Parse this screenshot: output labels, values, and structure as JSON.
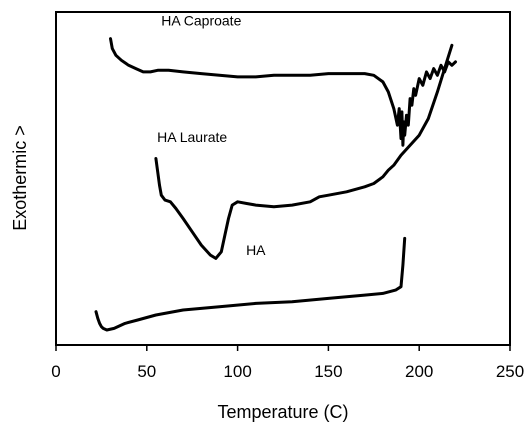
{
  "chart_data": {
    "type": "line",
    "title": "",
    "xlabel": "Temperature (C)",
    "ylabel": "Exothermic  >",
    "xlim": [
      0,
      250
    ],
    "xticks": [
      0,
      50,
      100,
      150,
      200,
      250
    ],
    "ylim": [
      0,
      100
    ],
    "yticks": [],
    "grid": false,
    "legend": "none",
    "series": [
      {
        "name": "HA Caproate",
        "x": [
          30,
          31,
          33,
          36,
          40,
          44,
          48,
          52,
          56,
          62,
          70,
          80,
          90,
          100,
          110,
          120,
          130,
          140,
          150,
          160,
          170,
          175,
          180,
          183,
          186,
          188,
          189,
          190,
          190.5,
          191,
          191.5,
          192,
          193,
          194,
          195,
          196,
          197,
          198,
          200,
          202,
          204,
          206,
          208,
          210,
          212,
          214,
          216,
          218,
          220
        ],
        "y": [
          92,
          89,
          87,
          85.5,
          84,
          83,
          82,
          82,
          82.5,
          82.5,
          82,
          81.5,
          81,
          80.5,
          80.5,
          81,
          81,
          81,
          81.5,
          81.5,
          81.5,
          81,
          79,
          76,
          71,
          66,
          71,
          62,
          70,
          60,
          67,
          63,
          69,
          66,
          74,
          72,
          77,
          75,
          80,
          78,
          82,
          80,
          83,
          81,
          84,
          82,
          85,
          84,
          85
        ]
      },
      {
        "name": "HA Laurate",
        "x": [
          55,
          56,
          57,
          58,
          60,
          63,
          66,
          70,
          75,
          80,
          85,
          88,
          91,
          93,
          95,
          97,
          100,
          105,
          110,
          120,
          130,
          140,
          145,
          150,
          160,
          170,
          175,
          180,
          183,
          186,
          190,
          195,
          200,
          205,
          210,
          214,
          218
        ],
        "y": [
          56,
          52,
          48,
          45,
          43.5,
          43,
          41,
          38,
          34,
          30,
          27,
          26,
          28,
          33,
          38,
          42,
          43,
          42.5,
          42,
          41.5,
          42,
          43,
          44.5,
          45,
          46,
          47.5,
          48.5,
          50.5,
          52.5,
          54,
          57,
          60,
          63,
          68,
          76,
          83,
          90
        ]
      },
      {
        "name": "HA",
        "x": [
          22,
          23,
          24,
          25,
          26,
          28,
          32,
          38,
          45,
          55,
          70,
          90,
          110,
          130,
          150,
          170,
          180,
          187,
          190,
          191,
          192
        ],
        "y": [
          10,
          8,
          6.5,
          5.5,
          5,
          4.5,
          5,
          6.5,
          7.5,
          9,
          10.5,
          11.5,
          12.5,
          13,
          14,
          15,
          15.5,
          16.5,
          17.5,
          24,
          32
        ]
      }
    ]
  }
}
